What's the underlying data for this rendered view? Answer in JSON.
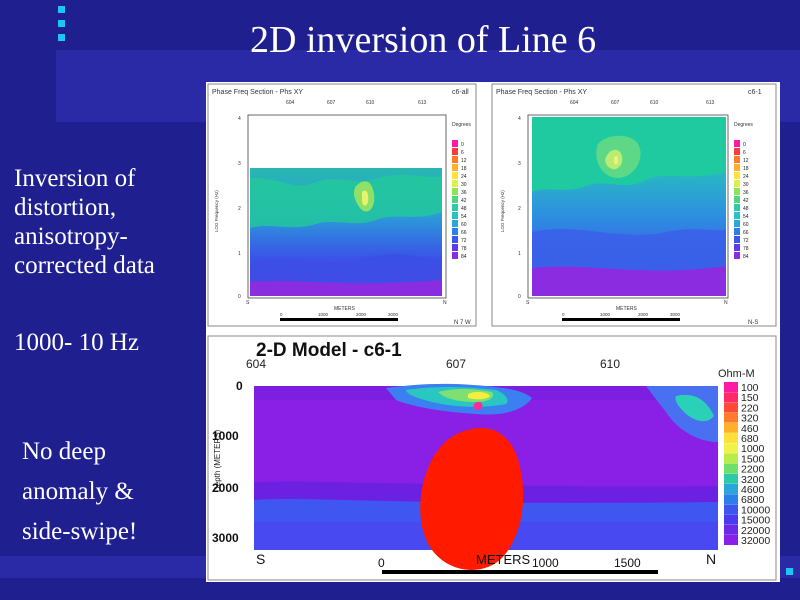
{
  "slide": {
    "title": "2D inversion of Line 6",
    "left_text_lines": [
      "Inversion of",
      "distortion,",
      "anisotropy-",
      "corrected data"
    ],
    "freq_range": "1000- 10 Hz",
    "note_lines": [
      "No deep",
      "anomaly &",
      "side-swipe!"
    ]
  },
  "colors": {
    "background": "#1f1f8f",
    "band": "#2a2aa6",
    "accent_dots": "#1cc6f2",
    "anomaly": "#ff1a00"
  },
  "panels": [
    {
      "header": "Phase Freq Section - Phs XY",
      "id": "c6-all",
      "stations": [
        "604",
        "607",
        "610",
        "613"
      ],
      "legend_title": "Degrees",
      "legend_values": [
        "0",
        "6",
        "12",
        "18",
        "24",
        "30",
        "36",
        "42",
        "48",
        "54",
        "60",
        "66",
        "72",
        "78",
        "84"
      ],
      "yaxis": "LOG Frequency (Hz)",
      "ticks_y": [
        "4",
        "3",
        "2",
        "1",
        "0"
      ],
      "xlabel": "METERS",
      "dir_s": "S",
      "dir_n": "N",
      "scale": [
        "0",
        "1000",
        "2000",
        "3000"
      ],
      "dir_text": "N 7 W"
    },
    {
      "header": "Phase Freq Section - Phs XY",
      "id": "c6-1",
      "stations": [
        "604",
        "607",
        "610",
        "613"
      ],
      "legend_title": "Degrees",
      "legend_values": [
        "0",
        "6",
        "12",
        "18",
        "24",
        "30",
        "36",
        "42",
        "48",
        "54",
        "60",
        "66",
        "72",
        "78",
        "84"
      ],
      "yaxis": "LOG Frequency (Hz)",
      "ticks_y": [
        "4",
        "3",
        "2",
        "1",
        "0"
      ],
      "xlabel": "METERS",
      "dir_s": "S",
      "dir_n": "N",
      "scale": [
        "0",
        "1000",
        "2000",
        "3000"
      ],
      "dir_text": "N-S"
    }
  ],
  "model": {
    "title": "2-D Model - c6-1",
    "stations": [
      "604",
      "607",
      "610"
    ],
    "depth_label": "Depth (METERS)",
    "depth_ticks": [
      "0",
      "1000",
      "2000",
      "3000"
    ],
    "legend_title": "Ohm-M",
    "legend_values": [
      "100",
      "150",
      "220",
      "320",
      "460",
      "680",
      "1000",
      "1500",
      "2200",
      "3200",
      "4600",
      "6800",
      "10000",
      "15000",
      "22000",
      "32000"
    ],
    "s_label": "S",
    "n_label": "N",
    "x_label": "METERS",
    "scale": [
      "0",
      "1000",
      "1500"
    ]
  }
}
